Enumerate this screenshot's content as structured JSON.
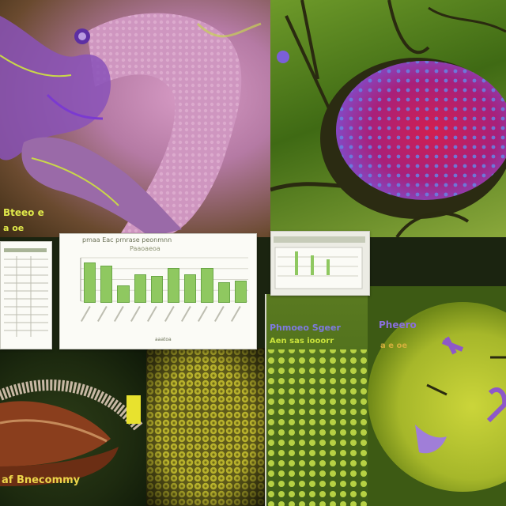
{
  "scene": {
    "colors": {
      "pink_tissue": "#c98ab3",
      "purple_filament": "#8a3fc4",
      "leaf_green": "#4f7b19",
      "cell_red": "#c81f4d",
      "cell_violet": "#7d4fd2",
      "yellow_dots": "#b2b628",
      "pollen_green": "#9fb82d",
      "lips_brown": "#7b3a1a",
      "chart_bar": "#8fc860"
    },
    "panels": [
      {
        "name": "tissue-panel",
        "icon": "tissue-icon"
      },
      {
        "name": "cell-panel",
        "icon": "cell-icon"
      },
      {
        "name": "lips-panel",
        "icon": "shell-icon"
      },
      {
        "name": "texture-panel",
        "icon": "texture-icon"
      },
      {
        "name": "dots-panel",
        "icon": "dots-icon"
      },
      {
        "name": "pollen-panel",
        "icon": "pollen-icon"
      }
    ]
  },
  "labels": {
    "tissue_caption": "Bteeo e",
    "tissue_subcaption": "a oe",
    "bottom_caption": "af Bnecommy",
    "dots_caption_1": "Phmoeo Sgeer",
    "dots_caption_2": "Aen sas iooorr",
    "pollen_caption_1": "Pheero",
    "pollen_caption_2": "a e oe"
  },
  "chart_card": {
    "title": "pmaa Eac prnrase peonmnn",
    "subtitle": "Paaoaeoa",
    "footer": "aaatoa"
  },
  "chart_data": {
    "type": "bar",
    "title": "pmaa Eac prnrase peonmnn",
    "categories": [
      "",
      "",
      "",
      "",
      "",
      "",
      "",
      "",
      "",
      ""
    ],
    "values": [
      0.9,
      0.82,
      0.36,
      0.62,
      0.58,
      0.76,
      0.62,
      0.77,
      0.44,
      0.48
    ],
    "ylim": [
      0,
      1
    ],
    "grid": true
  }
}
